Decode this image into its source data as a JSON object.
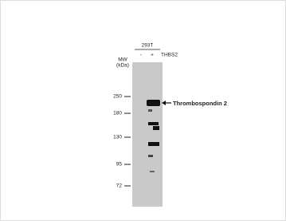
{
  "blot": {
    "cell_line": "293T",
    "lanes": [
      "-",
      "+"
    ],
    "target_gene": "THBS2",
    "mw_label": "MW",
    "mw_unit": "(kDa)",
    "markers": [
      250,
      180,
      130,
      95,
      72
    ],
    "band_label": "Thrombospondin 2"
  }
}
